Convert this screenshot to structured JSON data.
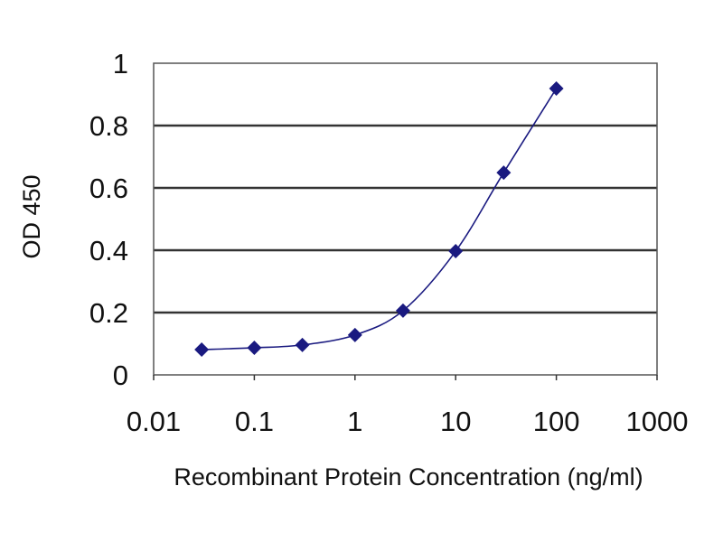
{
  "chart_data": {
    "type": "line",
    "title": "",
    "xlabel": "Recombinant Protein Concentration (ng/ml)",
    "ylabel": "OD 450",
    "x_scale": "log",
    "xlim": [
      0.01,
      1000
    ],
    "ylim": [
      0,
      1
    ],
    "x_ticks": [
      "0.01",
      "0.1",
      "1",
      "10",
      "100",
      "1000"
    ],
    "y_ticks": [
      "0",
      "0.2",
      "0.4",
      "0.6",
      "0.8",
      "1"
    ],
    "grid": "horizontal",
    "series": [
      {
        "x": [
          0.03,
          0.1,
          0.3,
          1,
          3,
          10,
          30,
          100
        ],
        "values": [
          0.081,
          0.087,
          0.096,
          0.128,
          0.206,
          0.397,
          0.649,
          0.919
        ]
      }
    ],
    "colors": {
      "series": "#1a1a80",
      "grid": "#333333"
    }
  }
}
